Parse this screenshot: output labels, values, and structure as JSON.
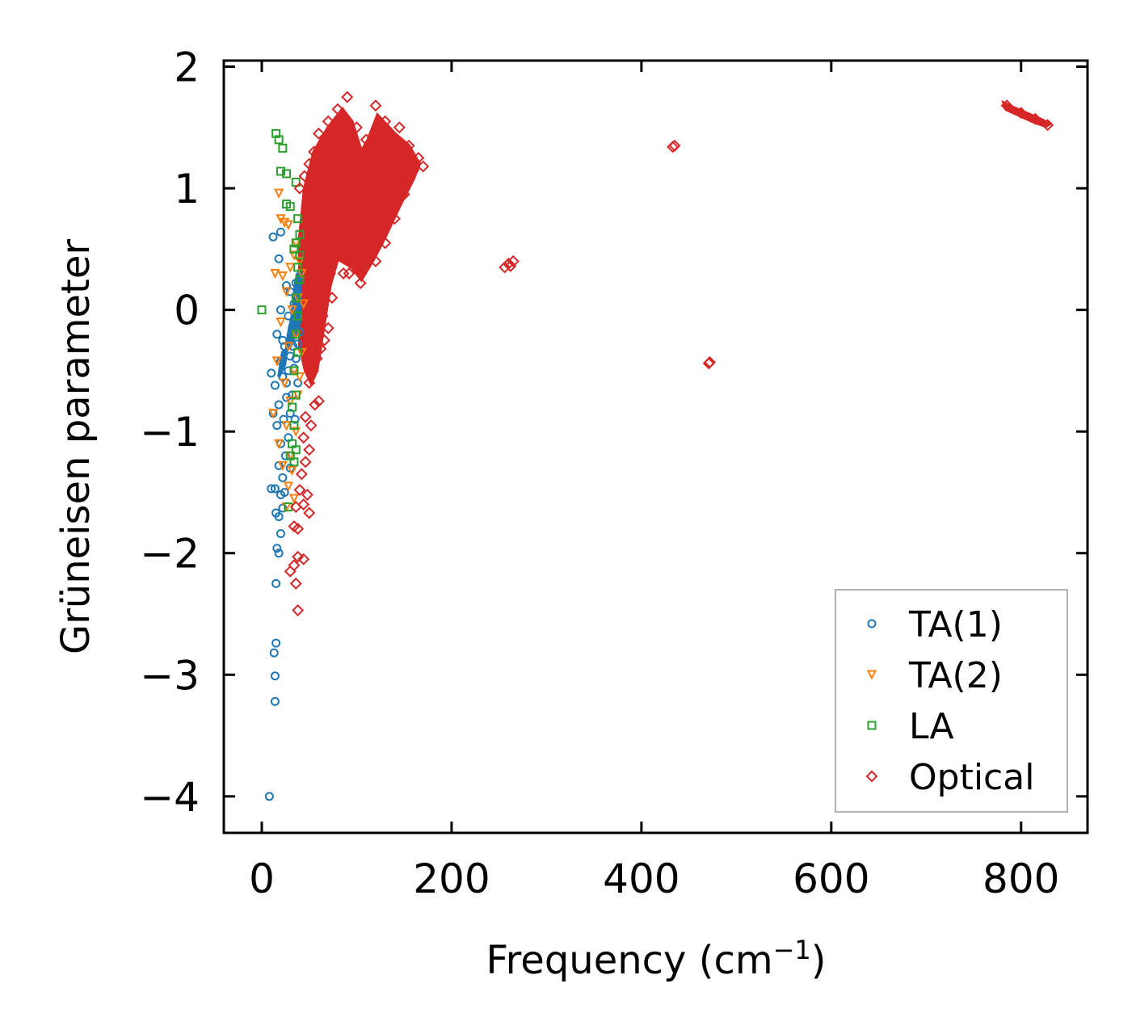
{
  "chart_data": {
    "type": "scatter",
    "xlabel": "Frequency (cm",
    "xlabel_sup": "−1",
    "xlabel_end": ")",
    "ylabel": "Grüneisen parameter",
    "xlim": [
      -40,
      870
    ],
    "ylim": [
      -4.3,
      2.05
    ],
    "xticks": [
      0,
      200,
      400,
      600,
      800
    ],
    "xtick_labels": [
      "0",
      "200",
      "400",
      "600",
      "800"
    ],
    "yticks": [
      2,
      1,
      0,
      -1,
      -2,
      -3,
      -4
    ],
    "ytick_labels": [
      "2",
      "1",
      "0",
      "−1",
      "−2",
      "−3",
      "−4"
    ],
    "legend_position": "lower-right",
    "series": [
      {
        "name": "TA(1)",
        "marker": "circle",
        "color": "#1f77b4",
        "points": [
          [
            8,
            -4.0
          ],
          [
            14,
            -3.22
          ],
          [
            14,
            -3.01
          ],
          [
            13,
            -2.82
          ],
          [
            15,
            -2.74
          ],
          [
            15,
            -2.25
          ],
          [
            18,
            -2.0
          ],
          [
            16,
            -1.96
          ],
          [
            20,
            -1.84
          ],
          [
            18,
            -1.7
          ],
          [
            22,
            -1.63
          ],
          [
            15,
            -1.67
          ],
          [
            20,
            -1.52
          ],
          [
            10,
            -1.47
          ],
          [
            14,
            -1.47
          ],
          [
            24,
            -1.5
          ],
          [
            22,
            -1.38
          ],
          [
            18,
            -1.28
          ],
          [
            25,
            -1.2
          ],
          [
            20,
            -1.1
          ],
          [
            28,
            -1.05
          ],
          [
            16,
            -0.95
          ],
          [
            23,
            -0.9
          ],
          [
            30,
            -0.85
          ],
          [
            12,
            -0.85
          ],
          [
            18,
            -0.78
          ],
          [
            26,
            -0.72
          ],
          [
            32,
            -0.7
          ],
          [
            14,
            -0.62
          ],
          [
            22,
            -0.55
          ],
          [
            10,
            -0.52
          ],
          [
            28,
            -0.5
          ],
          [
            34,
            -0.48
          ],
          [
            20,
            -0.42
          ],
          [
            30,
            -0.38
          ],
          [
            36,
            -0.4
          ],
          [
            24,
            -0.3
          ],
          [
            38,
            -0.28
          ],
          [
            16,
            -0.2
          ],
          [
            32,
            -0.15
          ],
          [
            40,
            -0.18
          ],
          [
            28,
            -0.05
          ],
          [
            36,
            -0.02
          ],
          [
            20,
            0.0
          ],
          [
            34,
            0.05
          ],
          [
            38,
            0.1
          ],
          [
            30,
            0.15
          ],
          [
            36,
            0.22
          ],
          [
            40,
            0.28
          ],
          [
            26,
            0.2
          ],
          [
            12,
            0.6
          ],
          [
            20,
            0.64
          ],
          [
            18,
            0.42
          ],
          [
            38,
            -0.6
          ],
          [
            35,
            -0.9
          ],
          [
            30,
            -1.3
          ],
          [
            26,
            -0.6
          ],
          [
            22,
            -0.25
          ],
          [
            33,
            -0.3
          ]
        ]
      },
      {
        "name": "TA(2)",
        "marker": "triangle",
        "color": "#ff7f0e",
        "points": [
          [
            18,
            0.96
          ],
          [
            20,
            0.75
          ],
          [
            24,
            0.72
          ],
          [
            28,
            0.7
          ],
          [
            36,
            0.55
          ],
          [
            34,
            0.45
          ],
          [
            40,
            0.4
          ],
          [
            14,
            0.3
          ],
          [
            22,
            0.28
          ],
          [
            30,
            0.35
          ],
          [
            42,
            0.3
          ],
          [
            26,
            0.15
          ],
          [
            38,
            0.1
          ],
          [
            32,
            0.0
          ],
          [
            44,
            0.05
          ],
          [
            20,
            -0.1
          ],
          [
            36,
            -0.2
          ],
          [
            28,
            -0.3
          ],
          [
            42,
            -0.35
          ],
          [
            16,
            -0.42
          ],
          [
            34,
            -0.5
          ],
          [
            40,
            -0.55
          ],
          [
            24,
            -0.6
          ],
          [
            38,
            -0.7
          ],
          [
            30,
            -0.75
          ],
          [
            12,
            -0.85
          ],
          [
            26,
            -0.95
          ],
          [
            36,
            -1.0
          ],
          [
            18,
            -1.1
          ],
          [
            30,
            -1.2
          ],
          [
            22,
            -1.28
          ],
          [
            32,
            -1.32
          ],
          [
            28,
            -1.45
          ],
          [
            34,
            -1.55
          ],
          [
            26,
            -1.62
          ]
        ]
      },
      {
        "name": "LA",
        "marker": "square",
        "color": "#2ca02c",
        "points": [
          [
            0,
            0.0
          ],
          [
            15,
            1.45
          ],
          [
            18,
            1.4
          ],
          [
            22,
            1.33
          ],
          [
            20,
            1.14
          ],
          [
            26,
            1.12
          ],
          [
            36,
            1.05
          ],
          [
            26,
            0.87
          ],
          [
            30,
            0.85
          ],
          [
            38,
            0.75
          ],
          [
            40,
            0.62
          ],
          [
            36,
            0.55
          ],
          [
            40,
            0.45
          ],
          [
            34,
            0.5
          ],
          [
            38,
            0.35
          ],
          [
            40,
            0.25
          ],
          [
            36,
            0.1
          ],
          [
            38,
            -0.05
          ],
          [
            36,
            -0.2
          ],
          [
            38,
            -0.35
          ],
          [
            34,
            -0.5
          ],
          [
            36,
            -0.7
          ],
          [
            32,
            -0.8
          ],
          [
            34,
            -0.95
          ],
          [
            32,
            -1.1
          ],
          [
            34,
            -1.25
          ],
          [
            30,
            -1.2
          ],
          [
            36,
            -1.15
          ],
          [
            28,
            -1.62
          ]
        ]
      },
      {
        "name": "Optical",
        "marker": "diamond",
        "color": "#d62728",
        "points": [
          [
            38,
            -2.47
          ],
          [
            36,
            -2.25
          ],
          [
            30,
            -2.15
          ],
          [
            34,
            -2.1
          ],
          [
            38,
            -2.03
          ],
          [
            44,
            -2.05
          ],
          [
            34,
            -1.78
          ],
          [
            38,
            -1.8
          ],
          [
            44,
            -1.6
          ],
          [
            50,
            -1.67
          ],
          [
            36,
            -1.62
          ],
          [
            48,
            -1.52
          ],
          [
            40,
            -1.48
          ],
          [
            42,
            -1.35
          ],
          [
            46,
            -1.25
          ],
          [
            50,
            -1.15
          ],
          [
            44,
            -1.05
          ],
          [
            52,
            -0.95
          ],
          [
            46,
            -0.88
          ],
          [
            56,
            -0.78
          ],
          [
            60,
            -0.75
          ],
          [
            50,
            -0.6
          ],
          [
            54,
            -0.5
          ],
          [
            58,
            -0.4
          ],
          [
            62,
            -0.32
          ],
          [
            66,
            -0.25
          ],
          [
            70,
            -0.15
          ],
          [
            64,
            -0.05
          ],
          [
            74,
            0.1
          ],
          [
            72,
            0.3
          ],
          [
            86,
            0.3
          ],
          [
            92,
            0.3
          ],
          [
            104,
            0.22
          ],
          [
            120,
            0.4
          ],
          [
            130,
            0.55
          ],
          [
            140,
            0.75
          ],
          [
            150,
            0.95
          ],
          [
            160,
            1.15
          ],
          [
            170,
            1.18
          ],
          [
            165,
            1.25
          ],
          [
            155,
            1.35
          ],
          [
            145,
            1.5
          ],
          [
            130,
            1.55
          ],
          [
            120,
            1.68
          ],
          [
            110,
            1.4
          ],
          [
            100,
            1.5
          ],
          [
            90,
            1.75
          ],
          [
            80,
            1.65
          ],
          [
            70,
            1.55
          ],
          [
            60,
            1.45
          ],
          [
            55,
            1.3
          ],
          [
            50,
            1.2
          ],
          [
            45,
            1.1
          ],
          [
            40,
            1.0
          ],
          [
            48,
            0.8
          ],
          [
            60,
            0.85
          ],
          [
            80,
            1.1
          ],
          [
            95,
            1.0
          ],
          [
            115,
            0.9
          ],
          [
            135,
            1.2
          ],
          [
            150,
            1.3
          ],
          [
            256,
            0.35
          ],
          [
            260,
            0.38
          ],
          [
            265,
            0.4
          ],
          [
            262,
            0.36
          ],
          [
            435,
            1.35
          ],
          [
            433,
            1.34
          ],
          [
            472,
            -0.43
          ],
          [
            471,
            -0.44
          ],
          [
            785,
            1.68
          ],
          [
            800,
            1.62
          ],
          [
            815,
            1.57
          ],
          [
            828,
            1.52
          ]
        ]
      }
    ],
    "filled_regions": [
      {
        "series": "Optical",
        "color": "#d62728",
        "outline": [
          [
            40,
            -0.3
          ],
          [
            40,
            0.6
          ],
          [
            45,
            1.0
          ],
          [
            55,
            1.3
          ],
          [
            70,
            1.5
          ],
          [
            85,
            1.65
          ],
          [
            95,
            1.55
          ],
          [
            105,
            1.3
          ],
          [
            112,
            1.4
          ],
          [
            122,
            1.6
          ],
          [
            140,
            1.45
          ],
          [
            155,
            1.35
          ],
          [
            166,
            1.2
          ],
          [
            160,
            1.08
          ],
          [
            145,
            0.85
          ],
          [
            130,
            0.6
          ],
          [
            118,
            0.42
          ],
          [
            105,
            0.25
          ],
          [
            95,
            0.35
          ],
          [
            80,
            0.42
          ],
          [
            72,
            0.2
          ],
          [
            66,
            -0.1
          ],
          [
            62,
            -0.3
          ],
          [
            58,
            -0.5
          ],
          [
            52,
            -0.6
          ],
          [
            46,
            -0.5
          ]
        ]
      },
      {
        "series": "Optical",
        "color": "#d62728",
        "outline": [
          [
            782,
            1.7
          ],
          [
            790,
            1.67
          ],
          [
            805,
            1.62
          ],
          [
            820,
            1.57
          ],
          [
            830,
            1.53
          ],
          [
            826,
            1.51
          ],
          [
            812,
            1.55
          ],
          [
            798,
            1.6
          ],
          [
            784,
            1.65
          ]
        ]
      },
      {
        "series": "TA(1)",
        "color": "#1f77b4",
        "outline": [
          [
            18,
            -0.55
          ],
          [
            22,
            -0.35
          ],
          [
            30,
            -0.3
          ],
          [
            36,
            -0.2
          ],
          [
            40,
            -0.1
          ],
          [
            40,
            0.3
          ],
          [
            36,
            0.25
          ],
          [
            32,
            -0.05
          ],
          [
            28,
            -0.2
          ],
          [
            24,
            -0.45
          ]
        ]
      }
    ]
  }
}
